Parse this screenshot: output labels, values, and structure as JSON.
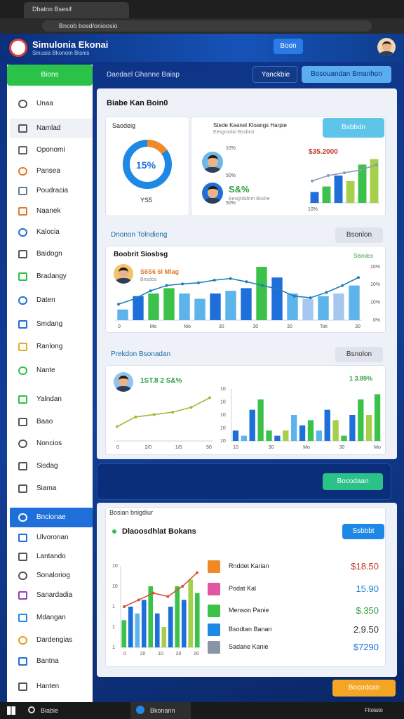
{
  "browser": {
    "tab": "Dbatno Bsesif",
    "url": "Bncob bosd/onioosio"
  },
  "header": {
    "title": "Simulonia Ekonai",
    "subtitle": "Sinusia Bkonom Bisnis",
    "button": "Boon"
  },
  "sidebar": {
    "active_top": "Bions",
    "items": [
      "Unaa",
      "Namlad",
      "Oponomi",
      "Pansea",
      "Poudracia",
      "Naanek",
      "Kalocia",
      "Baidogn",
      "Bradangy",
      "Daten",
      "Smdang",
      "Ranlong",
      "Nante",
      "Yalndan",
      "Baao",
      "Noncios",
      "Sisdag",
      "Siama",
      "Bncionae",
      "Ulvoronan",
      "Lantando",
      "Sonaloriog",
      "Sanardadia",
      "Mdangan",
      "Dardengias",
      "Bantna",
      "Hanten"
    ],
    "active_index": 18
  },
  "topbar": {
    "label": "Daedael Ghanne Baiap",
    "button1": "Yanckbie",
    "button2": "Bosouandan Bmanhon"
  },
  "card1": {
    "title": "Biabe Kan Boin0",
    "donut": {
      "label": "Saodeig",
      "value": 15,
      "value_label": "15%",
      "caption": "YS5",
      "color": "#1e88e5",
      "accent": "#f08a24"
    },
    "summary": {
      "heading": "Stede Keanel Kloangs Harpie",
      "sub": "Eesgrodiol Bssbrst",
      "button": "Bsbbdn",
      "stat1": "$35.2000",
      "stat2": "S&%",
      "stat2_sub": "Eesgnbdnm Bsshe",
      "chart": {
        "ylim": [
          0,
          10
        ],
        "bars": [
          2,
          3,
          5,
          4,
          7,
          8
        ],
        "colors": [
          "#1e6fd9",
          "#3cc24a",
          "#1e6fd9",
          "#a6d04a",
          "#3cc24a",
          "#a6d04a"
        ],
        "line": [
          4,
          5,
          5.5,
          6,
          7
        ],
        "line_color": "#8a9bb0",
        "ylabels": [
          "10%",
          "50%",
          "50%"
        ],
        "xlabels": [
          "10%"
        ]
      }
    }
  },
  "section1": {
    "label": "Dnonon Tolndieng",
    "button": "Bsonlon"
  },
  "card2": {
    "title": "Boobrit Siosbsg",
    "stat": "S6S6 6I Mlag",
    "sub": "Bnsdos",
    "right_label": "Slsndcs",
    "chart": {
      "ylim": [
        0,
        10
      ],
      "bars": [
        2,
        4.5,
        5,
        6,
        5,
        4,
        5,
        5.5,
        6,
        10,
        8,
        5,
        4,
        4.5,
        5,
        6.5
      ],
      "colors": [
        "#5db4ea",
        "#1e6fd9",
        "#3cc24a",
        "#3cc24a",
        "#5db4ea",
        "#5db4ea",
        "#1e6fd9",
        "#5db4ea",
        "#1e6fd9",
        "#3cc24a",
        "#1e6fd9",
        "#5db4ea",
        "#a6c8f0",
        "#5db4ea",
        "#a6c8f0",
        "#5db4ea"
      ],
      "line": [
        3,
        4,
        5.5,
        6.5,
        6.8,
        7,
        7.5,
        7.8,
        7.2,
        6.5,
        5.8,
        4.5,
        4.2,
        5.2,
        6.5,
        8
      ],
      "line_color": "#1f7fb8",
      "ylabels": [
        "10%",
        "10%",
        "10%",
        "0%"
      ],
      "xlabels": [
        "0",
        "Mo",
        "Mo",
        "30",
        "30",
        "30",
        "Tok",
        "30"
      ]
    }
  },
  "section2": {
    "label": "Prekdon Bsonadan",
    "button": "Bsnolon"
  },
  "card3": {
    "stat": "1ST.8 2 S&%",
    "right_stat": "1 3.89%",
    "line_chart": {
      "ylim": [
        0,
        12
      ],
      "line": [
        3,
        5,
        5.5,
        6,
        7,
        9
      ],
      "line_color": "#a6b83a",
      "xlabels": [
        "0",
        "2/0",
        "1/5",
        "50"
      ]
    },
    "bar_chart": {
      "ylim": [
        0,
        10
      ],
      "bars": [
        2,
        1,
        6,
        8,
        2,
        1,
        2,
        5,
        3,
        4,
        2,
        6,
        4,
        1,
        5,
        8,
        5,
        9
      ],
      "colors": [
        "#1e6fd9",
        "#5db4ea",
        "#1e6fd9",
        "#3cc24a",
        "#3cc24a",
        "#1e6fd9",
        "#a6d04a",
        "#5db4ea",
        "#1e6fd9",
        "#3cc24a",
        "#5db4ea",
        "#1e6fd9",
        "#a6d04a",
        "#3cc24a",
        "#1e6fd9",
        "#3cc24a",
        "#a6d04a",
        "#3cc24a"
      ],
      "ylabels": [
        "10",
        "10",
        "10",
        "10",
        "10"
      ],
      "xlabels": [
        "10",
        "30",
        "Mo",
        "30",
        "Mo"
      ]
    }
  },
  "banner": {
    "button": "Bocodaan"
  },
  "card4": {
    "header": "Bosian bnigdiur",
    "title": "Dlaoosdhlat Bokans",
    "button": "Ssbbbt",
    "chart": {
      "ylim": [
        0,
        12
      ],
      "bars": [
        4,
        6,
        5,
        7,
        9,
        5,
        3,
        6,
        9,
        7,
        10,
        8
      ],
      "colors": [
        "#3cc24a",
        "#1e6fd9",
        "#5db4ea",
        "#1e6fd9",
        "#3cc24a",
        "#1e6fd9",
        "#a6d04a",
        "#1e6fd9",
        "#3cc24a",
        "#1e6fd9",
        "#a6d04a",
        "#3cc24a"
      ],
      "line": [
        6,
        7,
        8,
        7.5,
        9,
        11
      ],
      "line_color": "#d9513c",
      "ylabels": [
        "10",
        "10",
        "1",
        "1",
        "1"
      ],
      "xlabels": [
        "0",
        "20",
        "10",
        "20",
        "20"
      ]
    },
    "rows": [
      {
        "label": "Rnddet Karian",
        "value": "$18.50",
        "color": "#f08a24",
        "value_color": "#c0392b"
      },
      {
        "label": "Podat Kal",
        "value": "15.90",
        "color": "#e056a0",
        "value_color": "#1e88c8"
      },
      {
        "label": "Menson Panie",
        "value": "$.350",
        "color": "#3cc24a",
        "value_color": "#2e9e3e"
      },
      {
        "label": "Bsodtan Banan",
        "value": "2.9.50",
        "color": "#1e88e5",
        "value_color": "#333333"
      },
      {
        "label": "Sadane Kanie",
        "value": "$7290",
        "color": "#8a96a8",
        "value_color": "#1e6fd9"
      }
    ]
  },
  "footer_button": "Bocodcan",
  "taskbar": {
    "search": "Biabie",
    "app": "Bkonann",
    "tray": "Fliolato"
  }
}
